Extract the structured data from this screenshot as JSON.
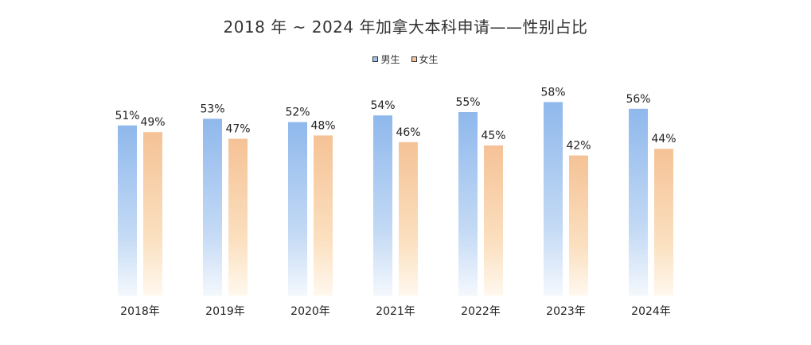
{
  "chart_data": {
    "type": "bar",
    "title": "2018 年 ~ 2024 年加拿大本科申请——性别占比",
    "categories": [
      "2018年",
      "2019年",
      "2020年",
      "2021年",
      "2022年",
      "2023年",
      "2024年"
    ],
    "series": [
      {
        "name": "男生",
        "values": [
          51,
          53,
          52,
          54,
          55,
          58,
          56
        ],
        "labels": [
          "51%",
          "53%",
          "52%",
          "54%",
          "55%",
          "58%",
          "56%"
        ],
        "color": "#9fc2ee"
      },
      {
        "name": "女生",
        "values": [
          49,
          47,
          48,
          46,
          45,
          42,
          44
        ],
        "labels": [
          "49%",
          "47%",
          "48%",
          "46%",
          "45%",
          "42%",
          "44%"
        ],
        "color": "#f6c79c"
      }
    ],
    "unit": "%",
    "ylim": [
      0,
      60
    ],
    "xlabel": "",
    "ylabel": "",
    "legend_position": "top-center",
    "grid": false
  }
}
